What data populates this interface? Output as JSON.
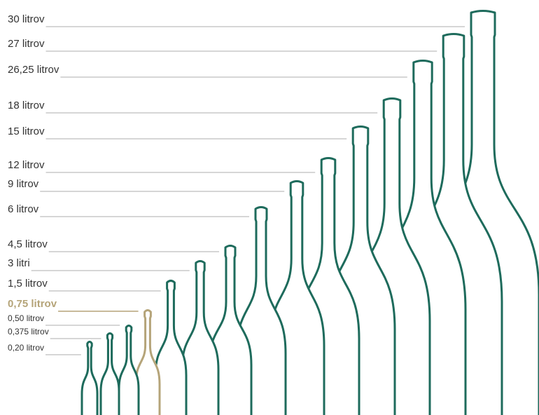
{
  "labels": [
    {
      "text": "30 litrov"
    },
    {
      "text": "27 litrov"
    },
    {
      "text": "26,25 litrov"
    },
    {
      "text": "18 litrov"
    },
    {
      "text": "15 litrov"
    },
    {
      "text": "12 litrov"
    },
    {
      "text": "9 litrov"
    },
    {
      "text": "6 litrov"
    },
    {
      "text": "4,5 litrov"
    },
    {
      "text": "3 litri"
    },
    {
      "text": "1,5 litrov"
    },
    {
      "text": "0,75 litrov",
      "color": "#b5a479"
    },
    {
      "text": "0,50 litrov"
    },
    {
      "text": "0,375 litrov"
    },
    {
      "text": "0,20 litrov"
    }
  ]
}
